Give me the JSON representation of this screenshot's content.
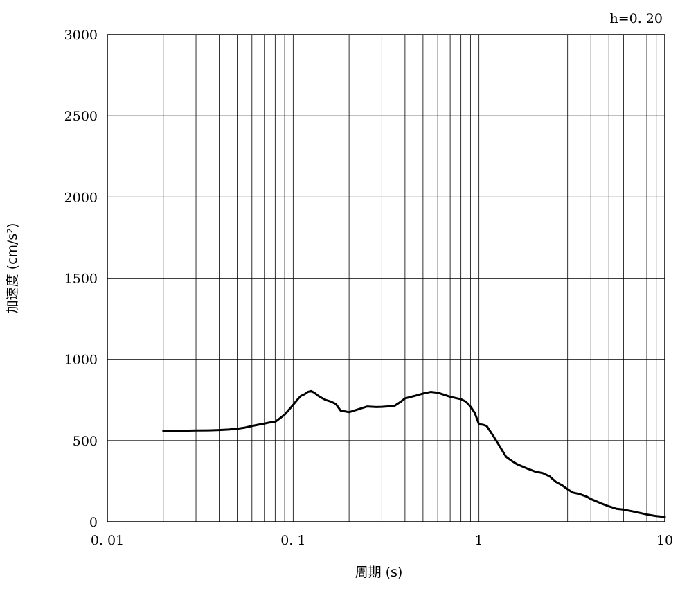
{
  "chart_data": {
    "type": "line",
    "title": "",
    "annotation": "h=0. 20",
    "xlabel": "周期 (s)",
    "ylabel": "加速度 (cm/s²)",
    "xscale": "log",
    "xlim": [
      0.01,
      10
    ],
    "ylim": [
      0,
      3000
    ],
    "grid": true,
    "xtick_labels": [
      {
        "value": 0.01,
        "label": "0. 01"
      },
      {
        "value": 0.1,
        "label": "0. 1"
      },
      {
        "value": 1,
        "label": "1"
      },
      {
        "value": 10,
        "label": "10"
      }
    ],
    "ytick_labels": [
      {
        "value": 0,
        "label": "0"
      },
      {
        "value": 500,
        "label": "500"
      },
      {
        "value": 1000,
        "label": "1000"
      },
      {
        "value": 1500,
        "label": "1500"
      },
      {
        "value": 2000,
        "label": "2000"
      },
      {
        "value": 2500,
        "label": "2500"
      },
      {
        "value": 3000,
        "label": "3000"
      }
    ],
    "series": [
      {
        "color": "#000000",
        "x": [
          0.02,
          0.025,
          0.03,
          0.035,
          0.04,
          0.045,
          0.05,
          0.055,
          0.06,
          0.065,
          0.07,
          0.075,
          0.08,
          0.09,
          0.1,
          0.105,
          0.11,
          0.115,
          0.12,
          0.125,
          0.13,
          0.135,
          0.14,
          0.15,
          0.16,
          0.17,
          0.18,
          0.2,
          0.22,
          0.25,
          0.28,
          0.3,
          0.35,
          0.38,
          0.4,
          0.45,
          0.5,
          0.55,
          0.6,
          0.7,
          0.8,
          0.85,
          0.9,
          0.95,
          1.0,
          1.05,
          1.1,
          1.2,
          1.3,
          1.4,
          1.5,
          1.6,
          1.8,
          2.0,
          2.2,
          2.4,
          2.6,
          2.8,
          3.0,
          3.2,
          3.5,
          3.8,
          4.0,
          4.5,
          5.0,
          5.5,
          6.0,
          7.0,
          8.0,
          9.0,
          10.0
        ],
        "y": [
          560,
          560,
          562,
          563,
          565,
          568,
          573,
          580,
          590,
          598,
          605,
          612,
          615,
          660,
          720,
          750,
          775,
          785,
          800,
          805,
          795,
          780,
          768,
          750,
          740,
          725,
          685,
          675,
          690,
          710,
          707,
          708,
          713,
          740,
          760,
          775,
          790,
          800,
          795,
          770,
          755,
          740,
          710,
          670,
          600,
          598,
          590,
          525,
          460,
          400,
          375,
          355,
          330,
          310,
          300,
          280,
          245,
          225,
          200,
          180,
          170,
          155,
          140,
          115,
          95,
          80,
          75,
          60,
          45,
          35,
          30
        ]
      }
    ]
  }
}
